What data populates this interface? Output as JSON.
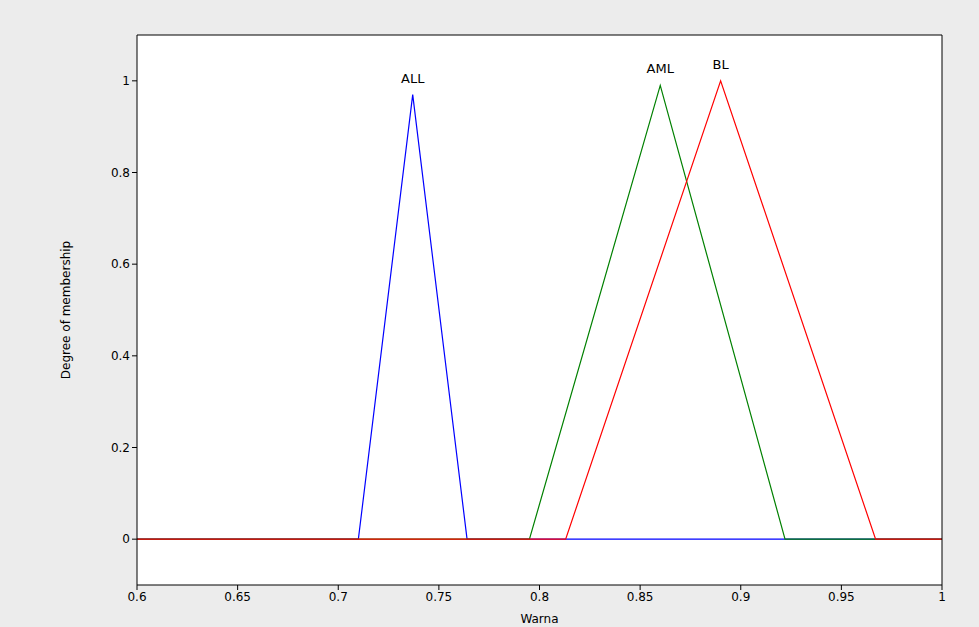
{
  "chart_data": {
    "type": "line",
    "x_label": "Warna",
    "y_label": "Degree of membership",
    "xlim": [
      0.6,
      1
    ],
    "xticks": [
      0.6,
      0.65,
      0.7,
      0.75,
      0.8,
      0.85,
      0.9,
      0.95,
      1
    ],
    "ylim": [
      -0.1,
      1.1
    ],
    "yticks": [
      0,
      0.2,
      0.4,
      0.6,
      0.8,
      1
    ],
    "grid": false,
    "series": [
      {
        "name": "ALL",
        "color": "#0000ff",
        "x": [
          0.6,
          0.71,
          0.737,
          0.764,
          1
        ],
        "values": [
          0,
          0,
          0.97,
          0,
          0
        ]
      },
      {
        "name": "AML",
        "color": "#008000",
        "x": [
          0.6,
          0.795,
          0.86,
          0.922,
          1
        ],
        "values": [
          0,
          0,
          0.99,
          0,
          0
        ]
      },
      {
        "name": "BL",
        "color": "#ff0000",
        "x": [
          0.6,
          0.813,
          0.89,
          0.967,
          1
        ],
        "values": [
          0,
          0,
          1,
          0,
          0
        ]
      }
    ]
  }
}
